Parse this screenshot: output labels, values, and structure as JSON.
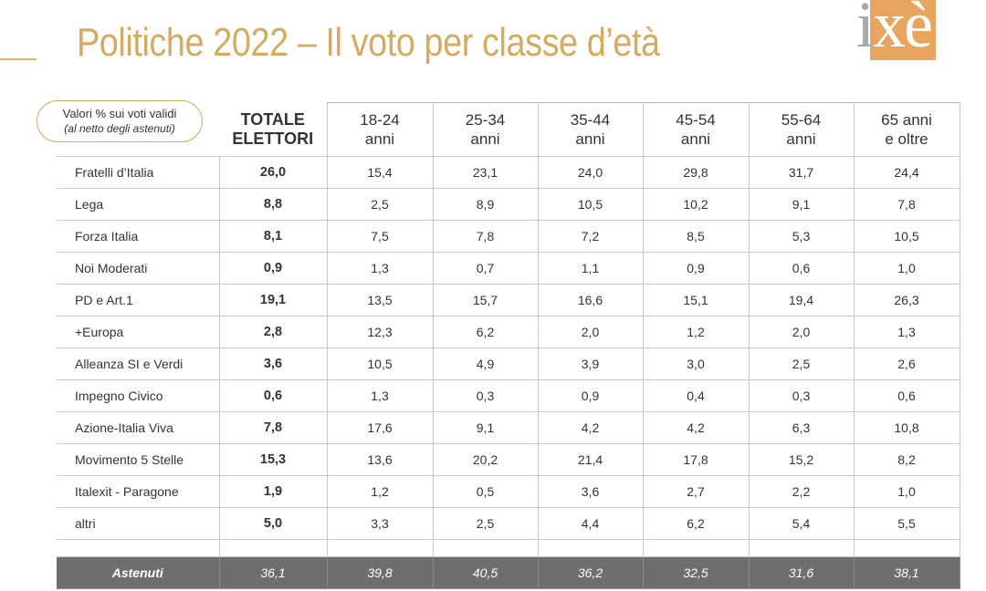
{
  "title": "Politiche 2022 – Il voto per classe d’età",
  "logo": {
    "text_i": "i",
    "text_rest": "xè"
  },
  "note": {
    "line1": "Valori % sui voti validi",
    "line2": "(al netto degli astenuti)"
  },
  "colors": {
    "accent": "#d3ab62",
    "logo_bg": "#e8a560",
    "abstain_row": "#6e6e6e"
  },
  "chart_data": {
    "type": "table",
    "title": "Politiche 2022 – Il voto per classe d’età",
    "columns": [
      {
        "line1": "TOTALE",
        "line2": "ELETTORI"
      },
      {
        "line1": "18-24",
        "line2": "anni"
      },
      {
        "line1": "25-34",
        "line2": "anni"
      },
      {
        "line1": "35-44",
        "line2": "anni"
      },
      {
        "line1": "45-54",
        "line2": "anni"
      },
      {
        "line1": "55-64",
        "line2": "anni"
      },
      {
        "line1": "65 anni",
        "line2": "e oltre"
      }
    ],
    "rows": [
      {
        "party": "Fratelli d’Italia",
        "values": [
          "26,0",
          "15,4",
          "23,1",
          "24,0",
          "29,8",
          "31,7",
          "24,4"
        ]
      },
      {
        "party": "Lega",
        "values": [
          "8,8",
          "2,5",
          "8,9",
          "10,5",
          "10,2",
          "9,1",
          "7,8"
        ]
      },
      {
        "party": "Forza Italia",
        "values": [
          "8,1",
          "7,5",
          "7,8",
          "7,2",
          "8,5",
          "5,3",
          "10,5"
        ]
      },
      {
        "party": "Noi Moderati",
        "values": [
          "0,9",
          "1,3",
          "0,7",
          "1,1",
          "0,9",
          "0,6",
          "1,0"
        ]
      },
      {
        "party": "PD e Art.1",
        "values": [
          "19,1",
          "13,5",
          "15,7",
          "16,6",
          "15,1",
          "19,4",
          "26,3"
        ]
      },
      {
        "party": "+Europa",
        "values": [
          "2,8",
          "12,3",
          "6,2",
          "2,0",
          "1,2",
          "2,0",
          "1,3"
        ]
      },
      {
        "party": "Alleanza SI e Verdi",
        "values": [
          "3,6",
          "10,5",
          "4,9",
          "3,9",
          "3,0",
          "2,5",
          "2,6"
        ]
      },
      {
        "party": "Impegno Civico",
        "values": [
          "0,6",
          "1,3",
          "0,3",
          "0,9",
          "0,4",
          "0,3",
          "0,6"
        ]
      },
      {
        "party": "Azione-Italia Viva",
        "values": [
          "7,8",
          "17,6",
          "9,1",
          "4,2",
          "4,2",
          "6,3",
          "10,8"
        ]
      },
      {
        "party": "Movimento 5 Stelle",
        "values": [
          "15,3",
          "13,6",
          "20,2",
          "21,4",
          "17,8",
          "15,2",
          "8,2"
        ]
      },
      {
        "party": "Italexit - Paragone",
        "values": [
          "1,9",
          "1,2",
          "0,5",
          "3,6",
          "2,7",
          "2,2",
          "1,0"
        ]
      },
      {
        "party": "altri",
        "values": [
          "5,0",
          "3,3",
          "2,5",
          "4,4",
          "6,2",
          "5,4",
          "5,5"
        ]
      }
    ],
    "abstention": {
      "label": "Astenuti",
      "values": [
        "36,1",
        "39,8",
        "40,5",
        "36,2",
        "32,5",
        "31,6",
        "38,1"
      ]
    }
  }
}
